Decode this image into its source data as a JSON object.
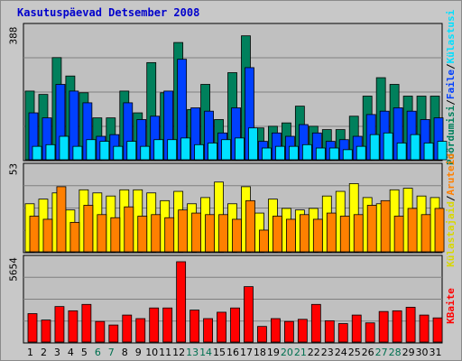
{
  "chart_data": {
    "type": "bar",
    "title": "Kasutuspäevad Detsember 2008",
    "categories": [
      "1",
      "2",
      "3",
      "4",
      "5",
      "6",
      "7",
      "8",
      "9",
      "10",
      "11",
      "12",
      "13",
      "14",
      "15",
      "16",
      "17",
      "18",
      "19",
      "20",
      "21",
      "22",
      "23",
      "24",
      "25",
      "26",
      "27",
      "28",
      "29",
      "30",
      "31"
    ],
    "weekend_days": [
      "6",
      "7",
      "13",
      "14",
      "20",
      "21",
      "27",
      "28"
    ],
    "panels": [
      {
        "id": "hits",
        "ymax_label": "388",
        "ylim": [
          0,
          388
        ],
        "legend": [
          "Pöördumisi",
          "Faile",
          "Külastusi"
        ],
        "series": [
          {
            "name": "Pöördumisi",
            "color": "#00805c",
            "values": [
              205,
              195,
              305,
              250,
              200,
              125,
              125,
              205,
              140,
              290,
              200,
              350,
              150,
              225,
              120,
              260,
              370,
              95,
              100,
              110,
              160,
              100,
              90,
              90,
              130,
              190,
              245,
              225,
              190,
              190,
              190
            ]
          },
          {
            "name": "Faile",
            "color": "#0040ff",
            "values": [
              140,
              125,
              225,
              205,
              170,
              70,
              75,
              170,
              120,
              130,
              205,
              300,
              155,
              145,
              80,
              155,
              275,
              55,
              80,
              70,
              105,
              80,
              55,
              60,
              70,
              135,
              145,
              155,
              145,
              120,
              125
            ]
          },
          {
            "name": "Külastusi",
            "color": "#00e0ff",
            "values": [
              40,
              45,
              70,
              40,
              60,
              55,
              40,
              55,
              40,
              60,
              60,
              65,
              45,
              50,
              60,
              65,
              95,
              35,
              40,
              40,
              45,
              35,
              35,
              30,
              40,
              75,
              80,
              50,
              75,
              50,
              55
            ]
          }
        ]
      },
      {
        "id": "visits",
        "ymax_label": "53",
        "ylim": [
          0,
          53
        ],
        "legend": [
          "Külastajaid",
          "Aruteid"
        ],
        "series": [
          {
            "name": "Külastajaid",
            "color": "#ffff00",
            "values": [
              31,
              34,
              38,
              27,
              40,
              38,
              36,
              40,
              40,
              38,
              33,
              39,
              31,
              35,
              45,
              31,
              42,
              25,
              34,
              28,
              27,
              28,
              36,
              39,
              44,
              35,
              31,
              40,
              41,
              36,
              35
            ]
          },
          {
            "name": "Aruteid",
            "color": "#ff8000",
            "values": [
              23,
              21,
              42,
              19,
              30,
              24,
              22,
              29,
              23,
              24,
              22,
              27,
              25,
              24,
              24,
              21,
              33,
              14,
              23,
              21,
              24,
              21,
              25,
              23,
              24,
              30,
              33,
              23,
              28,
              24,
              28
            ]
          }
        ]
      },
      {
        "id": "kbytes",
        "ymax_label": "5654",
        "ylim": [
          0,
          5654
        ],
        "legend": [
          "KBaite"
        ],
        "series": [
          {
            "name": "KBaite",
            "color": "#ff0000",
            "values": [
              2000,
              1550,
              2500,
              2200,
              2650,
              1450,
              1200,
              1900,
              1650,
              2400,
              2400,
              5654,
              2250,
              1650,
              2100,
              2400,
              3900,
              1100,
              1650,
              1450,
              1600,
              2650,
              1500,
              1300,
              1900,
              1350,
              2150,
              2200,
              2450,
              1900,
              1700
            ]
          }
        ]
      }
    ]
  }
}
